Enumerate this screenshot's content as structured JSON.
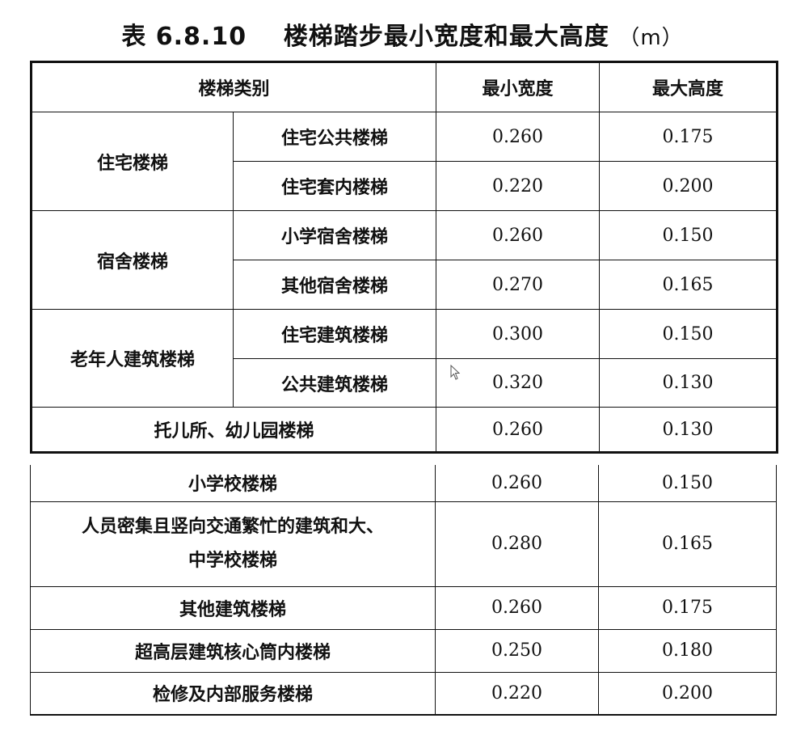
{
  "title": {
    "label": "表 6.8.10",
    "text": "楼梯踏步最小宽度和最大高度",
    "unit": "（m）"
  },
  "header": {
    "category": "楼梯类别",
    "min_width": "最小宽度",
    "max_height": "最大高度"
  },
  "groups": [
    {
      "name": "住宅楼梯",
      "rows": [
        {
          "sub": "住宅公共楼梯",
          "w": "0.260",
          "h": "0.175"
        },
        {
          "sub": "住宅套内楼梯",
          "w": "0.220",
          "h": "0.200"
        }
      ]
    },
    {
      "name": "宿舍楼梯",
      "rows": [
        {
          "sub": "小学宿舍楼梯",
          "w": "0.260",
          "h": "0.150"
        },
        {
          "sub": "其他宿舍楼梯",
          "w": "0.270",
          "h": "0.165"
        }
      ]
    },
    {
      "name": "老年人建筑楼梯",
      "rows": [
        {
          "sub": "住宅建筑楼梯",
          "w": "0.300",
          "h": "0.150"
        },
        {
          "sub": "公共建筑楼梯",
          "w": "0.320",
          "h": "0.130"
        }
      ]
    }
  ],
  "rows": [
    {
      "name": "托儿所、幼儿园楼梯",
      "w": "0.260",
      "h": "0.130"
    },
    {
      "name": "小学校楼梯",
      "w": "0.260",
      "h": "0.150"
    },
    {
      "name": "人员密集且竖向交通繁忙的建筑和大、",
      "name2": "中学校楼梯",
      "w": "0.280",
      "h": "0.165"
    },
    {
      "name": "其他建筑楼梯",
      "w": "0.260",
      "h": "0.175"
    },
    {
      "name": "超高层建筑核心筒内楼梯",
      "w": "0.250",
      "h": "0.180"
    },
    {
      "name": "检修及内部服务楼梯",
      "w": "0.220",
      "h": "0.200"
    }
  ],
  "icons": {
    "cursor": "mouse-pointer-icon"
  }
}
